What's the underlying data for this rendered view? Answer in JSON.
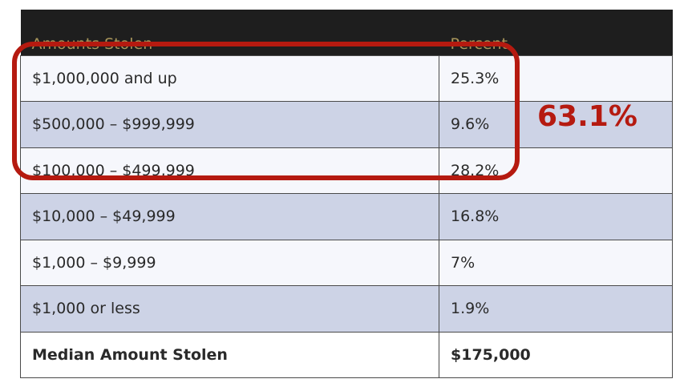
{
  "table": {
    "headers": [
      "Amounts Stolen",
      "Percent"
    ],
    "rows": [
      {
        "amount": "$1,000,000 and up",
        "percent": "25.3%"
      },
      {
        "amount": "$500,000 – $999,999",
        "percent": "9.6%"
      },
      {
        "amount": "$100,000 – $499,999",
        "percent": "28.2%"
      },
      {
        "amount": "$10,000 – $49,999",
        "percent": "16.8%"
      },
      {
        "amount": "$1,000 – $9,999",
        "percent": "7%"
      },
      {
        "amount": "$1,000 or less",
        "percent": "1.9%"
      }
    ],
    "total": {
      "label": "Median Amount Stolen",
      "value": "$175,000"
    }
  },
  "annotation": {
    "sum_label": "63.1%",
    "color": "#b51a10"
  },
  "colors": {
    "header_bg": "#1e1e1e",
    "header_text": "#a8955a",
    "row_light": "#f6f7fc",
    "row_dark": "#cdd3e6"
  }
}
